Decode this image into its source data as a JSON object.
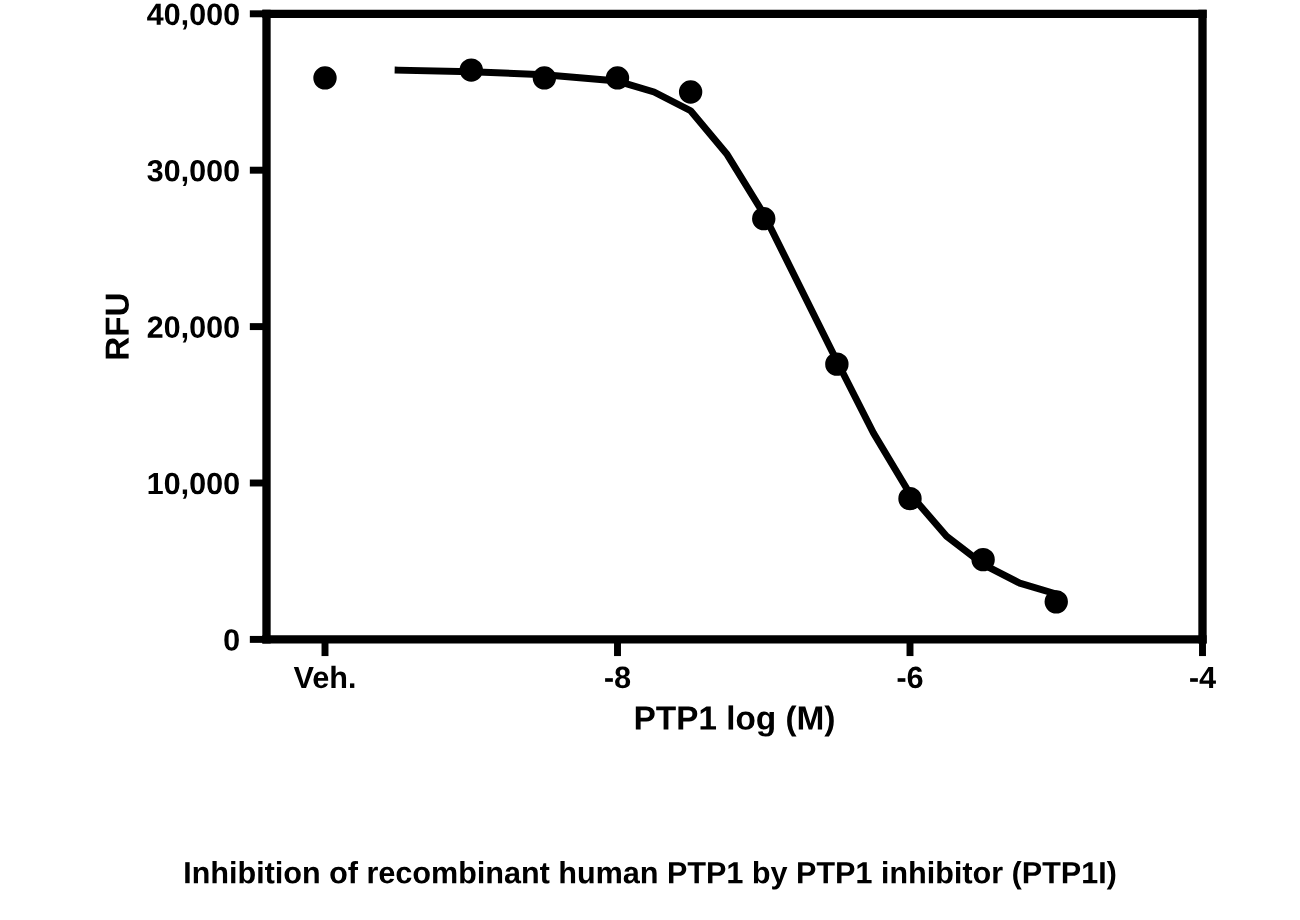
{
  "chart_data": {
    "type": "scatter",
    "xlabel": "PTP1 log (M)",
    "ylabel": "RFU",
    "annotations": [
      "Inhibition of recombinant human PTP1 by PTP1 inhibitor (PTP1I)"
    ],
    "series": [
      {
        "color": "#000000",
        "marker": "circle",
        "x": [
          -10,
          -9,
          -8.5,
          -8,
          -7.5,
          -7,
          -6.5,
          -6,
          -5.5,
          -5
        ],
        "values": [
          35900,
          36400,
          35900,
          35900,
          35000,
          26900,
          17600,
          9000,
          5100,
          2400
        ]
      },
      {
        "type": "line",
        "color": "#000000",
        "line_style": "solid",
        "x": [
          -9.5,
          -9,
          -8.5,
          -8,
          -7.75,
          -7.5,
          -7.25,
          -7,
          -6.75,
          -6.5,
          -6.25,
          -6,
          -5.75,
          -5.5,
          -5.25,
          -5
        ],
        "values": [
          36400,
          36300,
          36100,
          35700,
          35000,
          33800,
          31000,
          27200,
          22500,
          17800,
          13200,
          9300,
          6600,
          4800,
          3600,
          2900
        ]
      }
    ],
    "xlim": [
      -10.4,
      -4
    ],
    "xticks": [
      {
        "value": -10,
        "label": "Veh."
      },
      -8,
      -6,
      -4
    ],
    "ylim": [
      0,
      40000
    ],
    "yticks": [
      {
        "value": 0,
        "label": "0"
      },
      {
        "value": 10000,
        "label": "10,000"
      },
      {
        "value": 20000,
        "label": "20,000"
      },
      {
        "value": 30000,
        "label": "30,000"
      },
      {
        "value": 40000,
        "label": "40,000"
      }
    ],
    "grid": false,
    "legend": false
  }
}
